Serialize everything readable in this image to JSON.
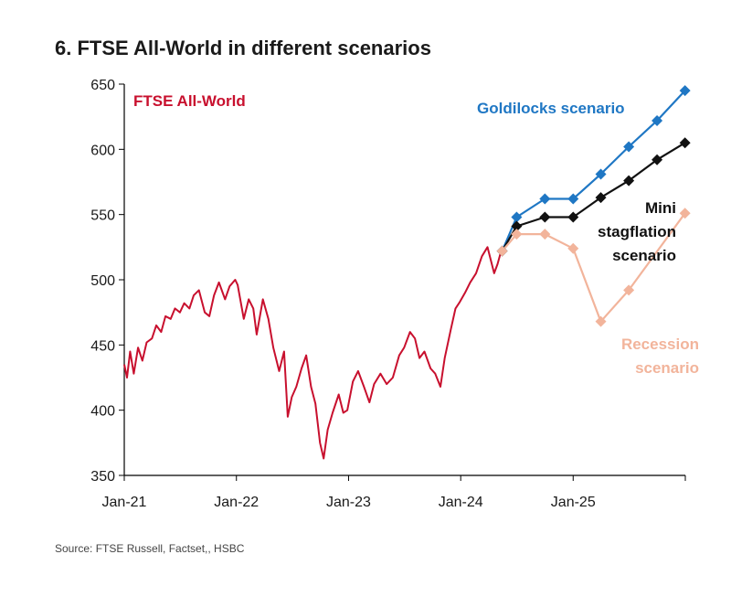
{
  "title": "6. FTSE All-World in different scenarios",
  "source": "Source: FTSE Russell, Factset,, HSBC",
  "chart_data": {
    "type": "line",
    "title": "6. FTSE All-World in different scenarios",
    "xlabel": "",
    "ylabel": "",
    "ylim": [
      350,
      650
    ],
    "yticks": [
      350,
      400,
      450,
      500,
      550,
      600,
      650
    ],
    "xlim": [
      "2021-01-01",
      "2026-01-01"
    ],
    "xticks": [
      {
        "date": "2021-01-01",
        "label": "Jan-21"
      },
      {
        "date": "2022-01-01",
        "label": "Jan-22"
      },
      {
        "date": "2023-01-01",
        "label": "Jan-23"
      },
      {
        "date": "2024-01-01",
        "label": "Jan-24"
      },
      {
        "date": "2025-01-01",
        "label": "Jan-25"
      }
    ],
    "grid": false,
    "series": [
      {
        "name": "FTSE All-World",
        "color": "#c8102e",
        "marker": "none",
        "points": [
          [
            "2021-01-01",
            435
          ],
          [
            "2021-01-10",
            425
          ],
          [
            "2021-01-20",
            445
          ],
          [
            "2021-02-01",
            428
          ],
          [
            "2021-02-15",
            448
          ],
          [
            "2021-03-01",
            438
          ],
          [
            "2021-03-15",
            452
          ],
          [
            "2021-04-01",
            455
          ],
          [
            "2021-04-15",
            465
          ],
          [
            "2021-05-01",
            460
          ],
          [
            "2021-05-15",
            472
          ],
          [
            "2021-06-01",
            470
          ],
          [
            "2021-06-15",
            478
          ],
          [
            "2021-07-01",
            475
          ],
          [
            "2021-07-15",
            482
          ],
          [
            "2021-08-01",
            478
          ],
          [
            "2021-08-15",
            488
          ],
          [
            "2021-09-01",
            492
          ],
          [
            "2021-09-20",
            475
          ],
          [
            "2021-10-05",
            472
          ],
          [
            "2021-10-20",
            488
          ],
          [
            "2021-11-05",
            498
          ],
          [
            "2021-11-25",
            485
          ],
          [
            "2021-12-10",
            495
          ],
          [
            "2021-12-28",
            500
          ],
          [
            "2022-01-05",
            496
          ],
          [
            "2022-01-25",
            470
          ],
          [
            "2022-02-10",
            485
          ],
          [
            "2022-02-25",
            478
          ],
          [
            "2022-03-08",
            458
          ],
          [
            "2022-03-28",
            485
          ],
          [
            "2022-04-15",
            470
          ],
          [
            "2022-05-01",
            448
          ],
          [
            "2022-05-20",
            430
          ],
          [
            "2022-06-05",
            445
          ],
          [
            "2022-06-17",
            395
          ],
          [
            "2022-06-30",
            410
          ],
          [
            "2022-07-15",
            418
          ],
          [
            "2022-08-01",
            432
          ],
          [
            "2022-08-16",
            442
          ],
          [
            "2022-09-01",
            418
          ],
          [
            "2022-09-15",
            405
          ],
          [
            "2022-09-30",
            375
          ],
          [
            "2022-10-12",
            363
          ],
          [
            "2022-10-25",
            385
          ],
          [
            "2022-11-10",
            398
          ],
          [
            "2022-11-30",
            412
          ],
          [
            "2022-12-15",
            398
          ],
          [
            "2022-12-28",
            400
          ],
          [
            "2023-01-15",
            422
          ],
          [
            "2023-02-01",
            430
          ],
          [
            "2023-02-20",
            418
          ],
          [
            "2023-03-10",
            406
          ],
          [
            "2023-03-25",
            420
          ],
          [
            "2023-04-15",
            428
          ],
          [
            "2023-05-05",
            420
          ],
          [
            "2023-05-25",
            425
          ],
          [
            "2023-06-15",
            442
          ],
          [
            "2023-07-01",
            448
          ],
          [
            "2023-07-20",
            460
          ],
          [
            "2023-08-05",
            455
          ],
          [
            "2023-08-20",
            440
          ],
          [
            "2023-09-05",
            445
          ],
          [
            "2023-09-25",
            432
          ],
          [
            "2023-10-10",
            428
          ],
          [
            "2023-10-27",
            418
          ],
          [
            "2023-11-10",
            440
          ],
          [
            "2023-11-30",
            462
          ],
          [
            "2023-12-15",
            478
          ],
          [
            "2023-12-29",
            483
          ],
          [
            "2024-01-15",
            490
          ],
          [
            "2024-02-01",
            498
          ],
          [
            "2024-02-20",
            505
          ],
          [
            "2024-03-10",
            518
          ],
          [
            "2024-03-28",
            525
          ],
          [
            "2024-04-19",
            505
          ],
          [
            "2024-04-30",
            512
          ],
          [
            "2024-05-15",
            525
          ]
        ]
      },
      {
        "name": "Goldilocks scenario",
        "color": "#1f77c4",
        "marker": "diamond",
        "points": [
          [
            "2024-05-15",
            522
          ],
          [
            "2024-07-01",
            548
          ],
          [
            "2024-10-01",
            562
          ],
          [
            "2025-01-01",
            562
          ],
          [
            "2025-04-01",
            581
          ],
          [
            "2025-07-01",
            602
          ],
          [
            "2025-10-01",
            622
          ],
          [
            "2025-12-31",
            645
          ]
        ]
      },
      {
        "name": "Mini stagflation scenario",
        "color": "#111111",
        "marker": "diamond",
        "points": [
          [
            "2024-05-15",
            522
          ],
          [
            "2024-07-01",
            541
          ],
          [
            "2024-10-01",
            548
          ],
          [
            "2025-01-01",
            548
          ],
          [
            "2025-04-01",
            563
          ],
          [
            "2025-07-01",
            576
          ],
          [
            "2025-10-01",
            592
          ],
          [
            "2025-12-31",
            605
          ]
        ]
      },
      {
        "name": "Recession scenario",
        "color": "#f2b49b",
        "marker": "diamond",
        "points": [
          [
            "2024-05-15",
            522
          ],
          [
            "2024-07-01",
            535
          ],
          [
            "2024-10-01",
            535
          ],
          [
            "2025-01-01",
            524
          ],
          [
            "2025-04-01",
            468
          ],
          [
            "2025-07-01",
            492
          ],
          [
            "2025-12-31",
            551
          ]
        ]
      }
    ],
    "labels": [
      {
        "series": "FTSE All-World",
        "lines": [
          "FTSE All-World"
        ]
      },
      {
        "series": "Goldilocks scenario",
        "lines": [
          "Goldilocks scenario"
        ]
      },
      {
        "series": "Mini stagflation scenario",
        "lines": [
          "Mini",
          "stagflation",
          "scenario"
        ]
      },
      {
        "series": "Recession scenario",
        "lines": [
          "Recession",
          "scenario"
        ]
      }
    ]
  }
}
